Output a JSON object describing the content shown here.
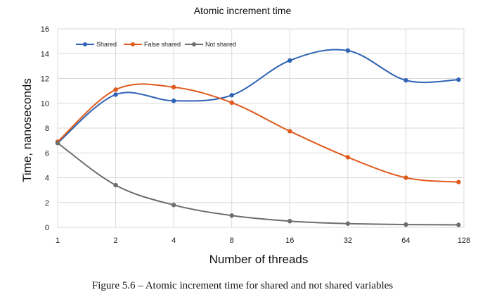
{
  "chart_data": {
    "type": "line",
    "title": "Atomic increment time",
    "xlabel": "Number of threads",
    "ylabel": "Time, nanoseconds",
    "x_scale": "log2",
    "x": [
      1,
      2,
      4,
      8,
      16,
      32,
      64,
      128
    ],
    "x_tick_labels": [
      "1",
      "2",
      "4",
      "8",
      "16",
      "32",
      "64",
      "128"
    ],
    "ylim": [
      0,
      16
    ],
    "y_ticks": [
      0,
      2,
      4,
      6,
      8,
      10,
      12,
      14,
      16
    ],
    "grid": true,
    "legend_position": "top-left",
    "series": [
      {
        "name": "Shared",
        "color": "#2e63b5",
        "x": [
          1,
          2,
          4,
          8,
          16,
          32,
          64,
          120
        ],
        "values": [
          6.8,
          10.7,
          10.2,
          10.65,
          13.45,
          14.25,
          11.85,
          11.9
        ]
      },
      {
        "name": "False shared",
        "color": "#e05a1c",
        "x": [
          1,
          2,
          4,
          8,
          16,
          32,
          64,
          120
        ],
        "values": [
          6.9,
          11.1,
          11.3,
          10.05,
          7.75,
          5.65,
          4.0,
          3.65
        ]
      },
      {
        "name": "Not shared",
        "color": "#6d6d6d",
        "x": [
          1,
          2,
          4,
          8,
          16,
          32,
          64,
          120
        ],
        "values": [
          6.8,
          3.4,
          1.8,
          0.95,
          0.5,
          0.3,
          0.22,
          0.2
        ]
      }
    ]
  },
  "caption": "Figure 5.6 – Atomic increment time for shared and not shared variables"
}
